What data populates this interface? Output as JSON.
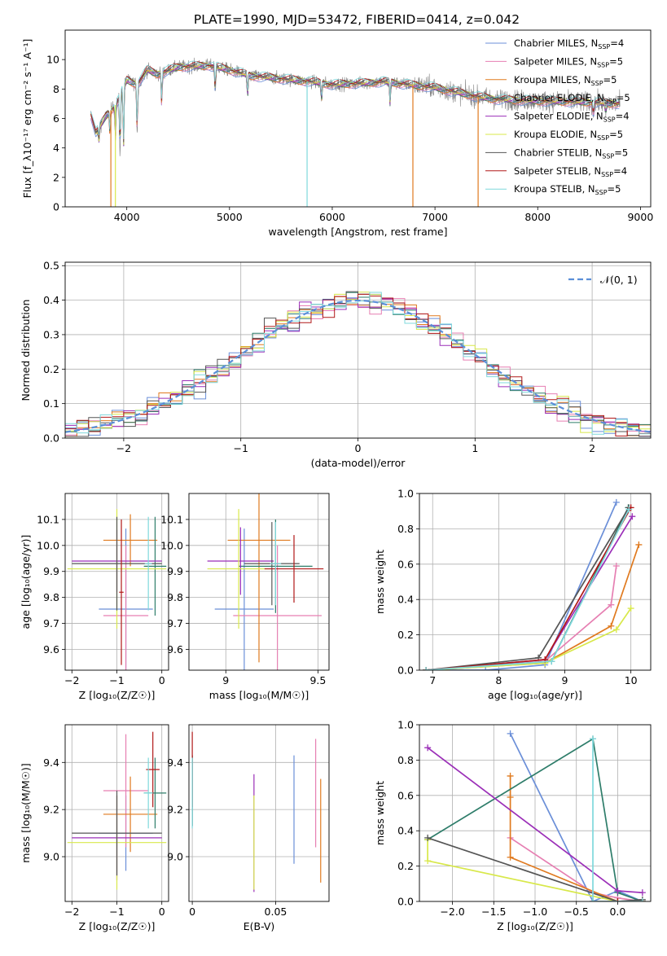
{
  "figure_title": "PLATE=1990, MJD=53472, FIBERID=0414, z=0.042",
  "colors": {
    "Chabrier MILES": "#6b8fd8",
    "Salpeter MILES": "#e67fb2",
    "Kroupa MILES": "#e07a1f",
    "Chabrier ELODIE": "#2e7d6a",
    "Salpeter ELODIE": "#9b2fb8",
    "Kroupa ELODIE": "#d8e84a",
    "Chabrier STELIB": "#555555",
    "Salpeter STELIB": "#b01818",
    "Kroupa STELIB": "#7fd8dc",
    "obs": "#808080",
    "normal": "#5b8fd8"
  },
  "chart_data": [
    {
      "type": "line",
      "name": "spectrum",
      "xlabel": "wavelength [Angstrom, rest frame]",
      "ylabel": "Flux [f_λ10⁻¹⁷ erg cm⁻² s⁻¹ A⁻¹]",
      "xlim": [
        3400,
        9100
      ],
      "ylim": [
        0,
        12
      ],
      "xticks": [
        4000,
        5000,
        6000,
        7000,
        8000,
        9000
      ],
      "yticks": [
        0,
        2,
        4,
        6,
        8,
        10
      ],
      "legend_position": "upper-right",
      "legend": [
        {
          "name": "Chabrier MILES",
          "nssp": "4"
        },
        {
          "name": "Salpeter MILES",
          "nssp": "5"
        },
        {
          "name": "Kroupa MILES",
          "nssp": "5"
        },
        {
          "name": "Chabrier ELODIE",
          "nssp": "5"
        },
        {
          "name": "Salpeter ELODIE",
          "nssp": "4"
        },
        {
          "name": "Kroupa ELODIE",
          "nssp": "5"
        },
        {
          "name": "Chabrier STELIB",
          "nssp": "5"
        },
        {
          "name": "Salpeter STELIB",
          "nssp": "4"
        },
        {
          "name": "Kroupa STELIB",
          "nssp": "5"
        }
      ],
      "continuum": [
        [
          3650,
          6.3
        ],
        [
          3700,
          5.0
        ],
        [
          3800,
          6.2
        ],
        [
          3900,
          7.0
        ],
        [
          4000,
          8.6
        ],
        [
          4100,
          8.3
        ],
        [
          4200,
          9.3
        ],
        [
          4300,
          9.0
        ],
        [
          4500,
          9.5
        ],
        [
          4800,
          9.6
        ],
        [
          5000,
          9.3
        ],
        [
          5200,
          8.9
        ],
        [
          5500,
          8.7
        ],
        [
          5800,
          8.5
        ],
        [
          6000,
          8.3
        ],
        [
          6300,
          8.4
        ],
        [
          6500,
          8.5
        ],
        [
          7000,
          8.1
        ],
        [
          7400,
          7.5
        ],
        [
          7600,
          7.3
        ],
        [
          8000,
          7.2
        ],
        [
          8500,
          7.1
        ],
        [
          8800,
          7.0
        ]
      ],
      "dips": [
        [
          3728,
          4.4
        ],
        [
          3835,
          5.2
        ],
        [
          3889,
          4.8
        ],
        [
          3934,
          3.5
        ],
        [
          3968,
          3.8
        ],
        [
          4101,
          5.0
        ],
        [
          4340,
          7.0
        ],
        [
          4861,
          7.8
        ],
        [
          5175,
          7.4
        ],
        [
          5895,
          7.2
        ],
        [
          6563,
          7.0
        ],
        [
          8542,
          6.2
        ],
        [
          8662,
          6.4
        ]
      ]
    },
    {
      "type": "line",
      "name": "residuals",
      "xlabel": "(data-model)/error",
      "ylabel": "Normed distribution",
      "xlim": [
        -2.5,
        2.5
      ],
      "ylim": [
        0,
        0.51
      ],
      "xticks": [
        -2,
        -1,
        0,
        1,
        2
      ],
      "yticks": [
        0.0,
        0.1,
        0.2,
        0.3,
        0.4,
        0.5
      ],
      "legend": "𝒩(0, 1)",
      "legend_position": "upper-right",
      "bin_width": 0.1
    },
    {
      "type": "scatter",
      "name": "age-vs-Z",
      "xlabel": "Z [log₁₀(Z/Z☉)]",
      "ylabel": "age  [log₁₀(age/yr)]",
      "xlim": [
        -2.15,
        0.15
      ],
      "ylim": [
        9.52,
        10.2
      ],
      "xticks": [
        -2,
        -1,
        0
      ],
      "yticks": [
        9.6,
        9.7,
        9.8,
        9.9,
        10.0,
        10.1
      ],
      "points": [
        {
          "model": "Chabrier MILES",
          "x": -0.8,
          "xerr": 0.6,
          "y": 9.755,
          "yerr": 0.31
        },
        {
          "model": "Salpeter MILES",
          "x": -0.8,
          "xerr": 0.5,
          "y": 9.73,
          "yerr": 0.27
        },
        {
          "model": "Kroupa MILES",
          "x": -0.7,
          "xerr": 0.6,
          "y": 10.02,
          "yerr": 0.1
        },
        {
          "model": "Chabrier ELODIE",
          "x": -0.15,
          "xerr": 0.25,
          "y": 9.92,
          "yerr": 0.19
        },
        {
          "model": "Salpeter ELODIE",
          "x": -1.0,
          "xerr": 1.0,
          "y": 9.94,
          "yerr": 0.12
        },
        {
          "model": "Kroupa ELODIE",
          "x": -1.0,
          "xerr": 1.1,
          "y": 9.91,
          "yerr": 0.23
        },
        {
          "model": "Chabrier STELIB",
          "x": -1.0,
          "xerr": 1.0,
          "y": 9.93,
          "yerr": 0.18
        },
        {
          "model": "Salpeter STELIB",
          "x": -0.9,
          "xerr": 0.05,
          "y": 9.82,
          "yerr": 0.28
        },
        {
          "model": "Kroupa STELIB",
          "x": -0.3,
          "xerr": 0.08,
          "y": 9.93,
          "yerr": 0.18
        }
      ]
    },
    {
      "type": "scatter",
      "name": "age-vs-mass",
      "xlabel": "mass [log₁₀(M/M☉)]",
      "ylabel": "",
      "xlim": [
        8.8,
        9.56
      ],
      "ylim": [
        9.52,
        10.2
      ],
      "xticks": [
        9.0,
        9.5
      ],
      "yticks": [
        9.6,
        9.7,
        9.8,
        9.9,
        10.0,
        10.1
      ],
      "points": [
        {
          "model": "Chabrier MILES",
          "x": 9.1,
          "xerr": 0.16,
          "y": 9.755,
          "yerr": 0.31
        },
        {
          "model": "Salpeter MILES",
          "x": 9.28,
          "xerr": 0.24,
          "y": 9.73,
          "yerr": 0.27
        },
        {
          "model": "Kroupa MILES",
          "x": 9.18,
          "xerr": 0.17,
          "y": 10.02,
          "yerr": 0.47
        },
        {
          "model": "Chabrier ELODIE",
          "x": 9.27,
          "xerr": 0.2,
          "y": 9.92,
          "yerr": 0.18
        },
        {
          "model": "Salpeter ELODIE",
          "x": 9.08,
          "xerr": 0.18,
          "y": 9.94,
          "yerr": 0.13
        },
        {
          "model": "Kroupa ELODIE",
          "x": 9.07,
          "xerr": 0.17,
          "y": 9.91,
          "yerr": 0.23
        },
        {
          "model": "Chabrier STELIB",
          "x": 9.25,
          "xerr": 0.15,
          "y": 9.93,
          "yerr": 0.16
        },
        {
          "model": "Salpeter STELIB",
          "x": 9.37,
          "xerr": 0.16,
          "y": 9.91,
          "yerr": 0.13
        },
        {
          "model": "Kroupa STELIB",
          "x": 9.27,
          "xerr": 0.03,
          "y": 9.93,
          "yerr": 0.16
        }
      ]
    },
    {
      "type": "line",
      "name": "massweight-vs-age",
      "xlabel": "age  [log₁₀(age/yr)]",
      "ylabel": "mass weight",
      "xlim": [
        6.8,
        10.3
      ],
      "ylim": [
        0,
        1.0
      ],
      "xticks": [
        7,
        8,
        9,
        10
      ],
      "yticks": [
        0.0,
        0.2,
        0.4,
        0.6,
        0.8,
        1.0
      ],
      "series": [
        {
          "model": "Chabrier MILES",
          "points": [
            [
              6.9,
              0.0
            ],
            [
              7.8,
              0.0
            ],
            [
              8.7,
              0.03
            ],
            [
              9.78,
              0.95
            ]
          ]
        },
        {
          "model": "Salpeter MILES",
          "points": [
            [
              6.9,
              0.0
            ],
            [
              8.7,
              0.05
            ],
            [
              9.7,
              0.37
            ],
            [
              9.78,
              0.59
            ]
          ]
        },
        {
          "model": "Kroupa MILES",
          "points": [
            [
              6.9,
              0.0
            ],
            [
              8.7,
              0.04
            ],
            [
              9.7,
              0.25
            ],
            [
              10.12,
              0.71
            ]
          ]
        },
        {
          "model": "Chabrier ELODIE",
          "points": [
            [
              6.9,
              0.0
            ],
            [
              8.8,
              0.05
            ],
            [
              9.96,
              0.92
            ]
          ]
        },
        {
          "model": "Salpeter ELODIE",
          "points": [
            [
              6.9,
              0.0
            ],
            [
              8.7,
              0.06
            ],
            [
              10.02,
              0.87
            ]
          ]
        },
        {
          "model": "Kroupa ELODIE",
          "points": [
            [
              6.9,
              0.0
            ],
            [
              8.7,
              0.04
            ],
            [
              9.78,
              0.23
            ],
            [
              10.0,
              0.35
            ]
          ]
        },
        {
          "model": "Chabrier STELIB",
          "points": [
            [
              6.9,
              0.0
            ],
            [
              8.6,
              0.07
            ],
            [
              9.97,
              0.92
            ]
          ]
        },
        {
          "model": "Salpeter STELIB",
          "points": [
            [
              6.9,
              0.0
            ],
            [
              8.7,
              0.06
            ],
            [
              10.0,
              0.92
            ]
          ]
        },
        {
          "model": "Kroupa STELIB",
          "points": [
            [
              6.9,
              0.0
            ],
            [
              8.8,
              0.05
            ],
            [
              9.97,
              0.91
            ]
          ]
        }
      ]
    },
    {
      "type": "scatter",
      "name": "mass-vs-Z",
      "xlabel": "Z [log₁₀(Z/Z☉)]",
      "ylabel": "mass [log₁₀(M/M☉)]",
      "xlim": [
        -2.15,
        0.15
      ],
      "ylim": [
        8.81,
        9.56
      ],
      "xticks": [
        -2,
        -1,
        0
      ],
      "yticks": [
        9.0,
        9.2,
        9.4
      ],
      "points": [
        {
          "model": "Chabrier MILES",
          "x": -0.8,
          "xerr": 0.6,
          "y": 9.1,
          "yerr": 0.16
        },
        {
          "model": "Salpeter MILES",
          "x": -0.8,
          "xerr": 0.5,
          "y": 9.28,
          "yerr": 0.24
        },
        {
          "model": "Kroupa MILES",
          "x": -0.7,
          "xerr": 0.6,
          "y": 9.18,
          "yerr": 0.16
        },
        {
          "model": "Chabrier ELODIE",
          "x": -0.15,
          "xerr": 0.25,
          "y": 9.27,
          "yerr": 0.15
        },
        {
          "model": "Salpeter ELODIE",
          "x": -1.0,
          "xerr": 1.0,
          "y": 9.08,
          "yerr": 0.18
        },
        {
          "model": "Kroupa ELODIE",
          "x": -1.0,
          "xerr": 1.1,
          "y": 9.06,
          "yerr": 0.2
        },
        {
          "model": "Chabrier STELIB",
          "x": -1.0,
          "xerr": 1.0,
          "y": 9.1,
          "yerr": 0.18
        },
        {
          "model": "Salpeter STELIB",
          "x": -0.2,
          "xerr": 0.15,
          "y": 9.37,
          "yerr": 0.16
        },
        {
          "model": "Kroupa STELIB",
          "x": -0.3,
          "xerr": 0.1,
          "y": 9.27,
          "yerr": 0.15
        }
      ]
    },
    {
      "type": "scatter",
      "name": "mass-vs-EBV",
      "xlabel": "E(B-V)",
      "ylabel": "",
      "xlim": [
        -0.002,
        0.082
      ],
      "ylim": [
        8.81,
        9.56
      ],
      "xticks": [
        0.0,
        0.05
      ],
      "yticks": [
        9.0,
        9.2,
        9.4
      ],
      "points": [
        {
          "model": "Chabrier MILES",
          "x": 0.061,
          "y": 9.2,
          "yerr": 0.23
        },
        {
          "model": "Salpeter MILES",
          "x": 0.074,
          "y": 9.27,
          "yerr": 0.23
        },
        {
          "model": "Kroupa MILES",
          "x": 0.077,
          "y": 9.11,
          "yerr": 0.22
        },
        {
          "model": "Chabrier ELODIE",
          "x": 0.0,
          "y": 9.28,
          "yerr": 0.15
        },
        {
          "model": "Salpeter ELODIE",
          "x": 0.037,
          "y": 9.1,
          "yerr": 0.25
        },
        {
          "model": "Kroupa ELODIE",
          "x": 0.037,
          "y": 9.06,
          "yerr": 0.2
        },
        {
          "model": "Chabrier STELIB",
          "x": 0.0,
          "y": 9.28,
          "yerr": 0.15
        },
        {
          "model": "Salpeter STELIB",
          "x": 0.0,
          "y": 9.37,
          "yerr": 0.16
        },
        {
          "model": "Kroupa STELIB",
          "x": 0.0,
          "y": 9.27,
          "yerr": 0.15
        }
      ]
    },
    {
      "type": "line",
      "name": "massweight-vs-Z",
      "xlabel": "Z [log₁₀(Z/Z☉)]",
      "ylabel": "mass weight",
      "xlim": [
        -2.4,
        0.4
      ],
      "ylim": [
        0,
        1.0
      ],
      "xticks": [
        -2.0,
        -1.5,
        -1.0,
        -0.5,
        0.0
      ],
      "xtick_labels": [
        "−2.0",
        "−1.5",
        "−1.0",
        "−0.5",
        "0.0"
      ],
      "yticks": [
        0.0,
        0.2,
        0.4,
        0.6,
        0.8,
        1.0
      ],
      "series": [
        {
          "model": "Chabrier MILES",
          "points": [
            [
              -1.3,
              0.95
            ],
            [
              -0.3,
              0.0
            ],
            [
              0.0,
              0.06
            ],
            [
              0.3,
              0.0
            ]
          ]
        },
        {
          "model": "Salpeter MILES",
          "points": [
            [
              -1.3,
              0.36
            ],
            [
              -0.3,
              0.05
            ],
            [
              0.0,
              0.02
            ],
            [
              0.3,
              0.0
            ]
          ]
        },
        {
          "model": "Kroupa MILES",
          "points": [
            [
              -1.3,
              0.71
            ],
            [
              -1.3,
              0.59
            ],
            [
              -1.3,
              0.25
            ],
            [
              0.0,
              0.0
            ],
            [
              0.3,
              0.0
            ]
          ]
        },
        {
          "model": "Chabrier ELODIE",
          "points": [
            [
              -2.3,
              0.35
            ],
            [
              -0.3,
              0.92
            ],
            [
              0.0,
              0.05
            ],
            [
              0.3,
              0.0
            ]
          ]
        },
        {
          "model": "Salpeter ELODIE",
          "points": [
            [
              -2.3,
              0.87
            ],
            [
              0.0,
              0.06
            ],
            [
              0.3,
              0.05
            ]
          ]
        },
        {
          "model": "Kroupa ELODIE",
          "points": [
            [
              -2.3,
              0.35
            ],
            [
              -2.3,
              0.23
            ],
            [
              0.0,
              0.0
            ],
            [
              0.3,
              0.0
            ]
          ]
        },
        {
          "model": "Chabrier STELIB",
          "points": [
            [
              -2.3,
              0.36
            ],
            [
              0.0,
              0.0
            ],
            [
              0.3,
              0.01
            ]
          ]
        },
        {
          "model": "Salpeter STELIB",
          "points": [
            [
              -0.3,
              0.0
            ],
            [
              0.0,
              0.0
            ],
            [
              0.3,
              0.0
            ]
          ]
        },
        {
          "model": "Kroupa STELIB",
          "points": [
            [
              -0.3,
              0.92
            ],
            [
              -0.3,
              0.0
            ],
            [
              0.3,
              0.0
            ]
          ]
        }
      ]
    }
  ]
}
